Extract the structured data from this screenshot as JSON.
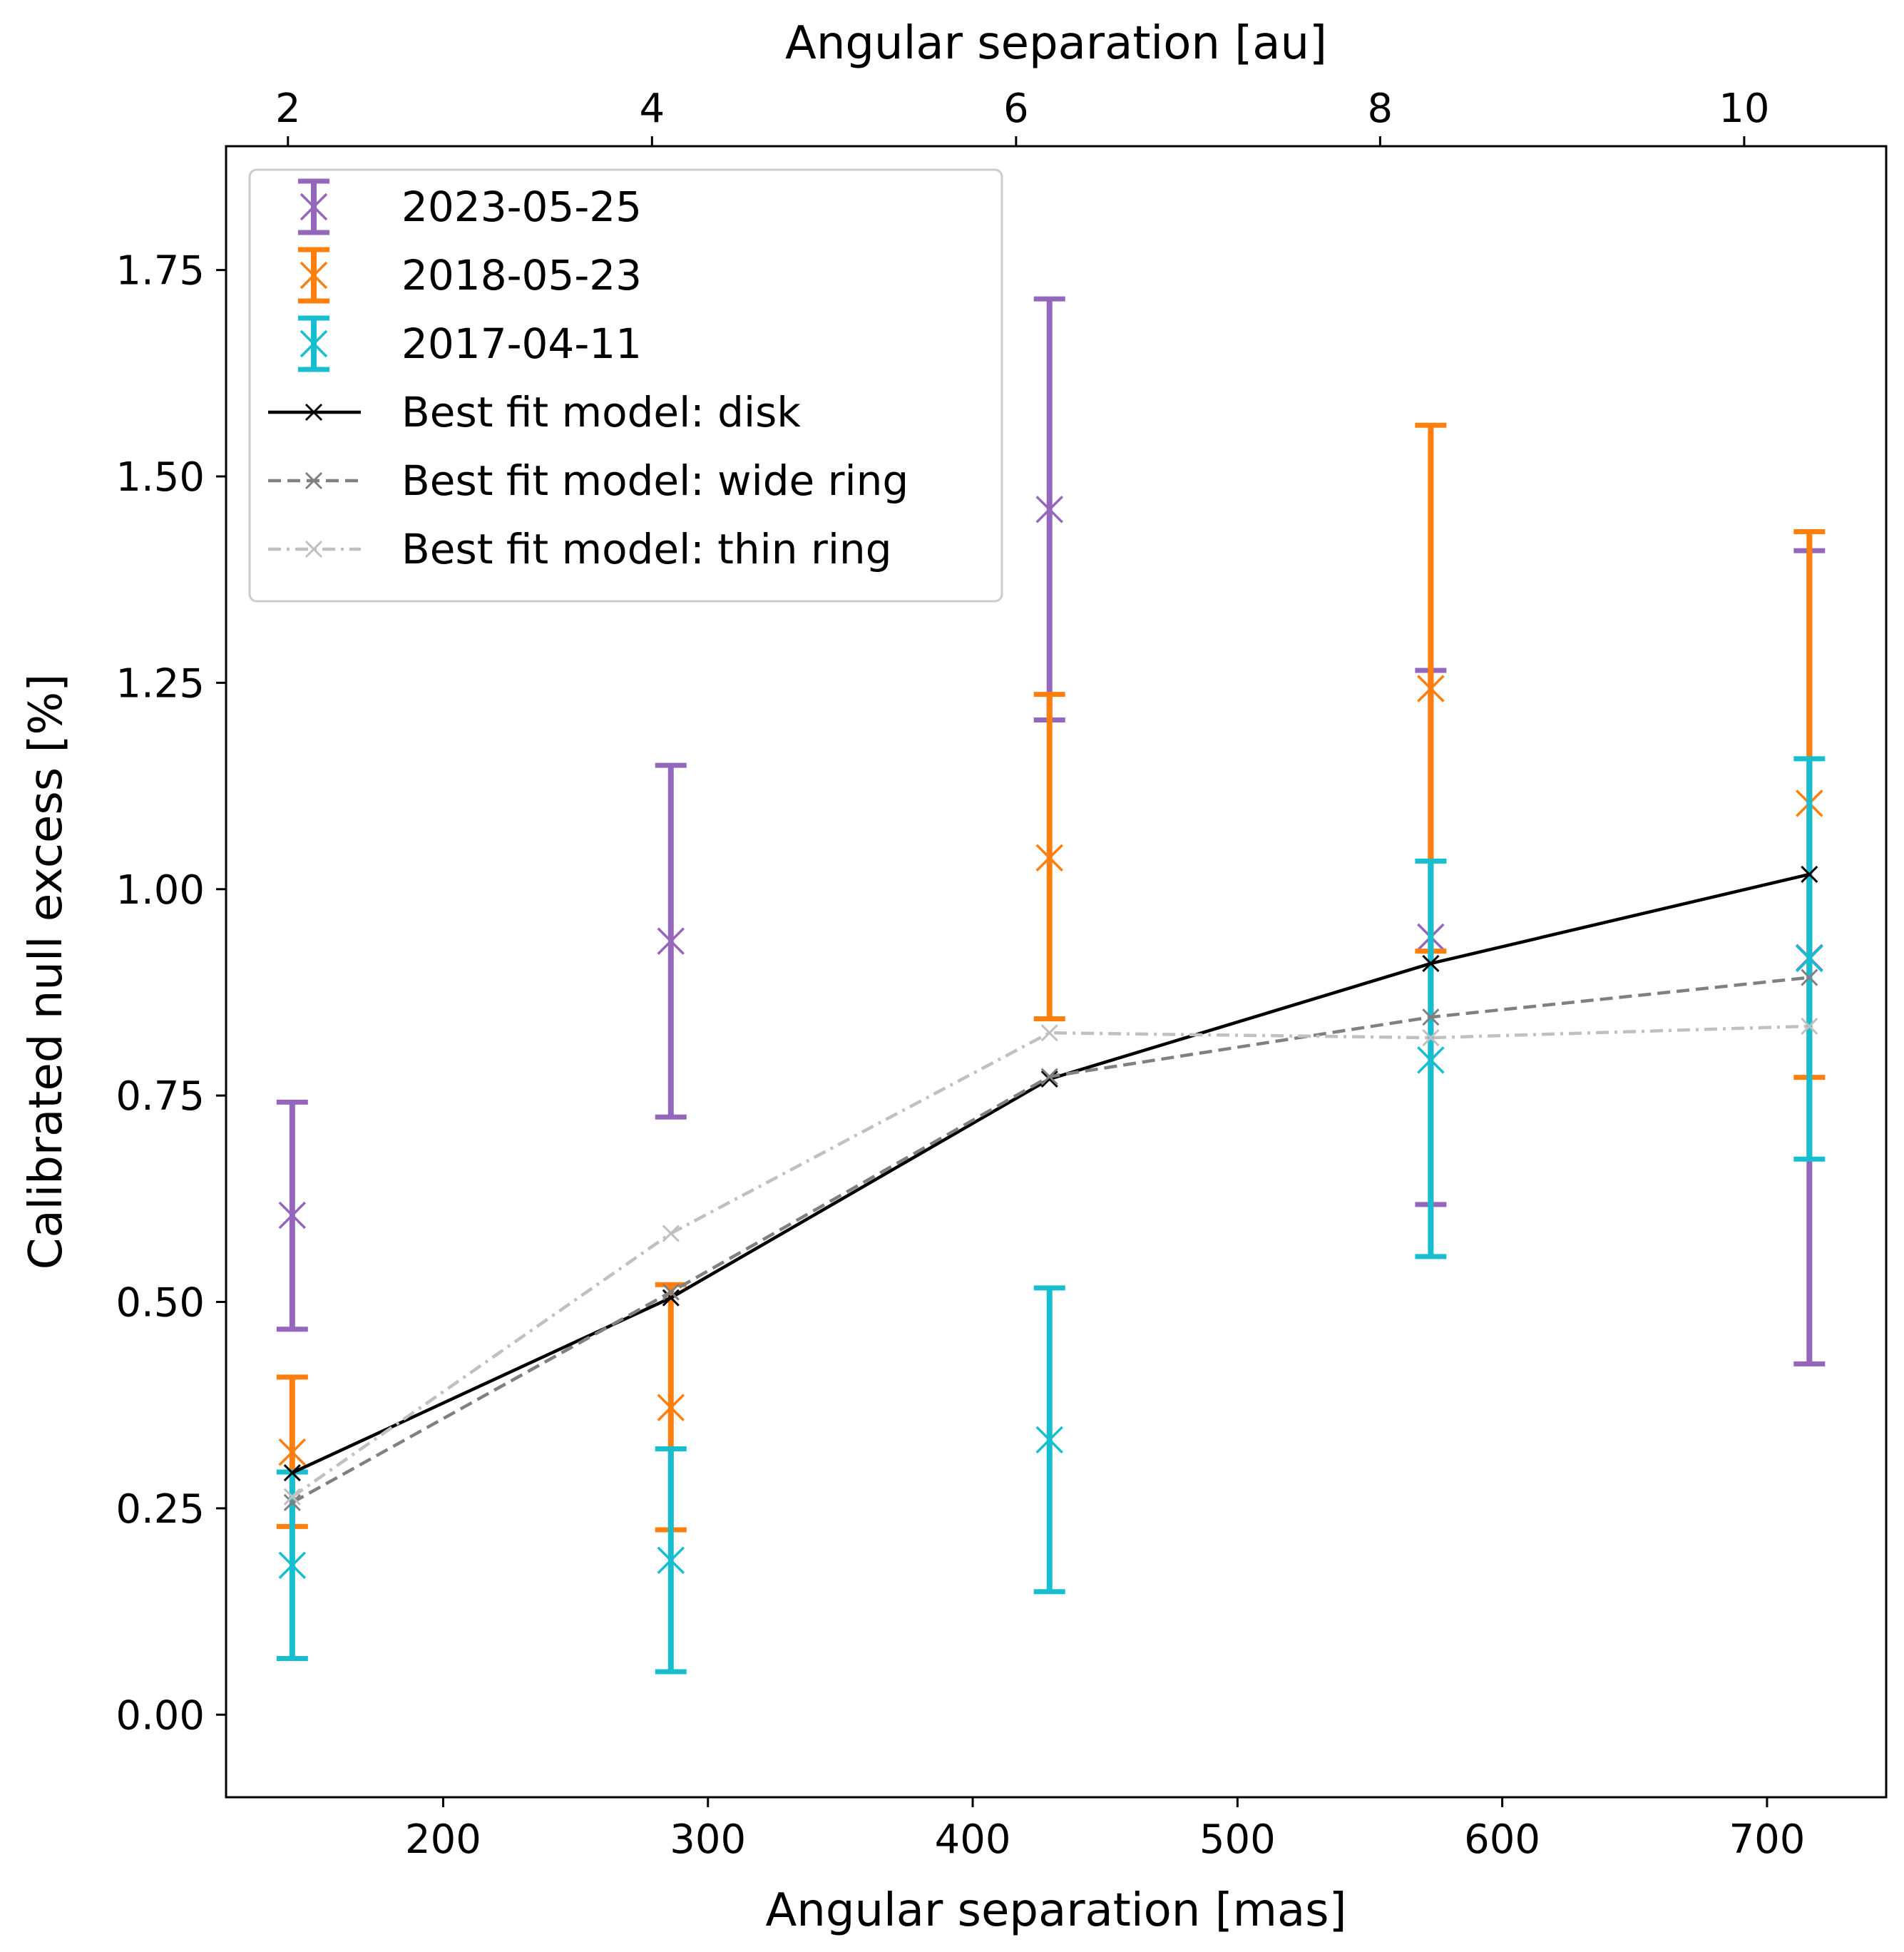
{
  "chart_data": {
    "type": "scatter",
    "title": "",
    "xlabel": "Angular separation [mas]",
    "ylabel": "Calibrated null excess [%]",
    "x2label": "Angular separation [au]",
    "xlim": [
      118,
      745
    ],
    "ylim": [
      -0.1,
      1.9
    ],
    "x2lim": [
      1.66,
      10.78
    ],
    "xticks": [
      200,
      300,
      400,
      500,
      600,
      700
    ],
    "yticks": [
      0.0,
      0.25,
      0.5,
      0.75,
      1.0,
      1.25,
      1.5,
      1.75
    ],
    "x2ticks": [
      2,
      4,
      6,
      8,
      10
    ],
    "grid": false,
    "legend_position": "top-left",
    "x": [
      143,
      286,
      429,
      573,
      716
    ],
    "series": [
      {
        "name": "2023-05-25",
        "kind": "errorbar",
        "color": "#9467bd",
        "values": [
          0.605,
          0.937,
          1.46,
          0.942,
          0.917
        ],
        "lower": [
          0.467,
          0.724,
          1.205,
          0.618,
          0.425
        ],
        "upper": [
          0.742,
          1.15,
          1.715,
          1.265,
          1.41
        ]
      },
      {
        "name": "2018-05-23",
        "kind": "errorbar",
        "color": "#ff7f0e",
        "values": [
          0.318,
          0.372,
          1.038,
          1.243,
          1.104
        ],
        "lower": [
          0.228,
          0.224,
          0.843,
          0.925,
          0.772
        ],
        "upper": [
          0.409,
          0.521,
          1.236,
          1.562,
          1.433
        ]
      },
      {
        "name": "2017-04-11",
        "kind": "errorbar",
        "color": "#17becf",
        "values": [
          0.181,
          0.187,
          0.333,
          0.793,
          0.916
        ],
        "lower": [
          0.068,
          0.052,
          0.149,
          0.555,
          0.673
        ],
        "upper": [
          0.294,
          0.322,
          0.517,
          1.034,
          1.158
        ]
      },
      {
        "name": "Best fit model: disk",
        "kind": "line",
        "color": "#000000",
        "dash": "solid",
        "values": [
          0.293,
          0.505,
          0.77,
          0.91,
          1.018
        ]
      },
      {
        "name": "Best fit model: wide ring",
        "kind": "line",
        "color": "#808080",
        "dash": "dashed",
        "values": [
          0.257,
          0.512,
          0.773,
          0.845,
          0.893
        ]
      },
      {
        "name": "Best fit model: thin ring",
        "kind": "line",
        "color": "#c0c0c0",
        "dash": "dashdot",
        "values": [
          0.264,
          0.583,
          0.826,
          0.82,
          0.834
        ]
      }
    ]
  }
}
